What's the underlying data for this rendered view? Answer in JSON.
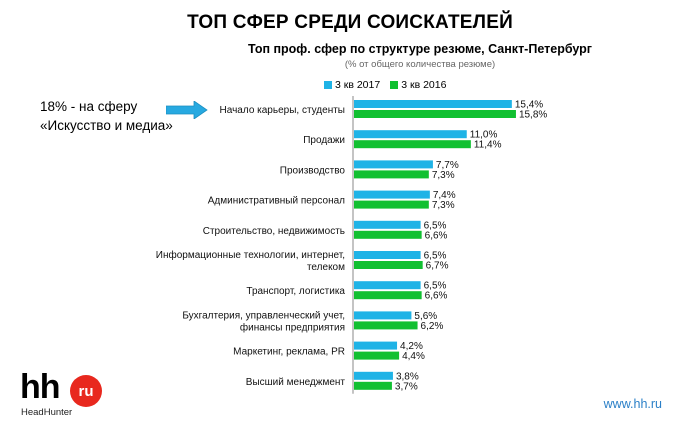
{
  "header": {
    "title": "ТОП СФЕР СРЕДИ СОИСКАТЕЛЕЙ"
  },
  "callout": {
    "line1": "18% - на сферу",
    "line2": "«Искусство и медиа»"
  },
  "footer": {
    "logo_text": "hh",
    "logo_badge": "ru",
    "logo_subtitle": "HeadHunter",
    "url": "www.hh.ru"
  },
  "colors": {
    "series_2017": "#1fb3e6",
    "series_2016": "#11c031",
    "arrow": "#27a9e1",
    "brand_red": "#e8281e",
    "url": "#2a7fc7"
  },
  "chart_data": {
    "type": "bar",
    "orientation": "horizontal",
    "title": "Топ проф. сфер по структуре резюме, Санкт-Петербург",
    "subtitle": "(% от общего количества резюме)",
    "legend_position": "top",
    "grid": false,
    "xlim": [
      0,
      16
    ],
    "categories": [
      "Начало карьеры, студенты",
      "Продажи",
      "Производство",
      "Административный персонал",
      "Строительство, недвижимость",
      "Информационные технологии, интернет, телеком",
      "Транспорт, логистика",
      "Бухгалтерия, управленческий учет, финансы предприятия",
      "Маркетинг, реклама, PR",
      "Высший менеджмент"
    ],
    "category_lines": [
      [
        "Начало карьеры, студенты"
      ],
      [
        "Продажи"
      ],
      [
        "Производство"
      ],
      [
        "Административный персонал"
      ],
      [
        "Строительство, недвижимость"
      ],
      [
        "Информационные технологии, интернет,",
        "телеком"
      ],
      [
        "Транспорт, логистика"
      ],
      [
        "Бухгалтерия, управленческий учет,",
        "финансы предприятия"
      ],
      [
        "Маркетинг, реклама, PR"
      ],
      [
        "Высший менеджмент"
      ]
    ],
    "series": [
      {
        "name": "3 кв 2017",
        "values": [
          15.4,
          11.0,
          7.7,
          7.4,
          6.5,
          6.5,
          6.5,
          5.6,
          4.2,
          3.8
        ],
        "labels": [
          "15,4%",
          "11,0%",
          "7,7%",
          "7,4%",
          "6,5%",
          "6,5%",
          "6,5%",
          "5,6%",
          "4,2%",
          "3,8%"
        ]
      },
      {
        "name": "3 кв 2016",
        "values": [
          15.8,
          11.4,
          7.3,
          7.3,
          6.6,
          6.7,
          6.6,
          6.2,
          4.4,
          3.7
        ],
        "labels": [
          "15,8%",
          "11,4%",
          "7,3%",
          "7,3%",
          "6,6%",
          "6,7%",
          "6,6%",
          "6,2%",
          "4,4%",
          "3,7%"
        ]
      }
    ]
  }
}
